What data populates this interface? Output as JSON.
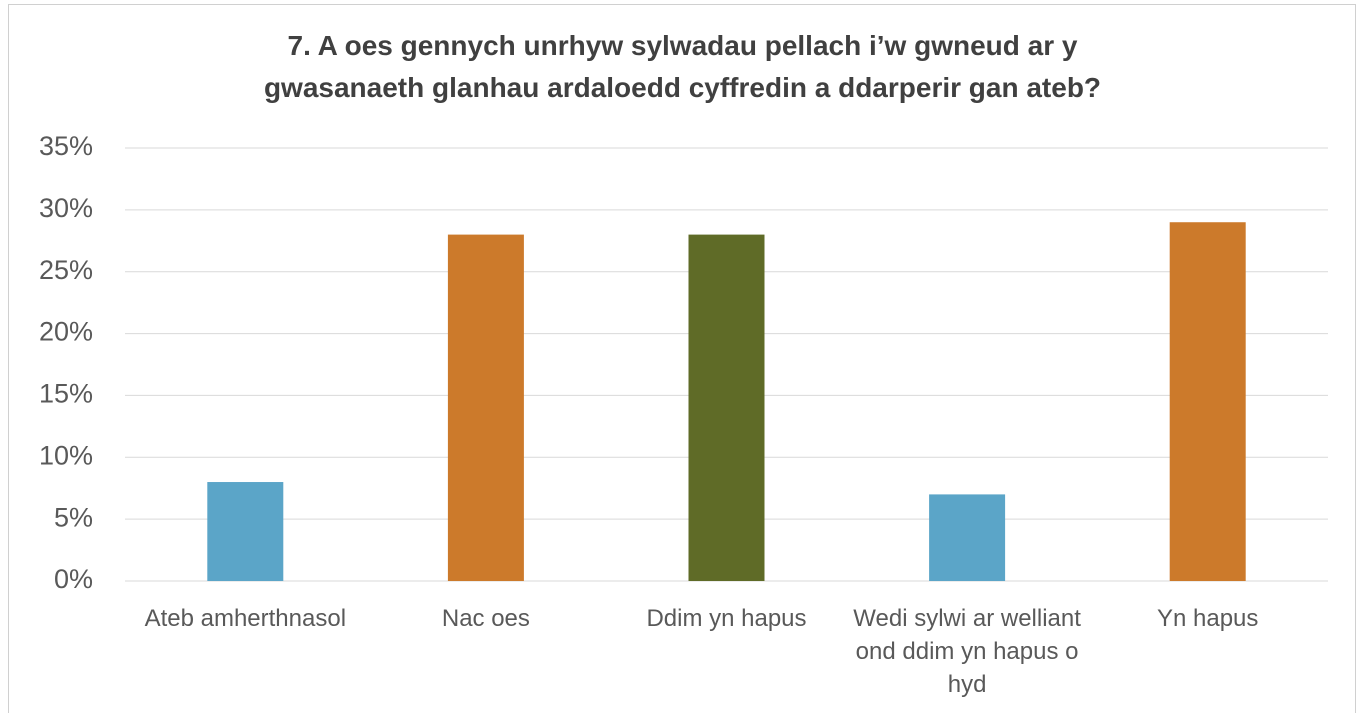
{
  "chart_data": {
    "type": "bar",
    "title": [
      "7.  A oes gennych unrhyw sylwadau pellach i’w gwneud ar y",
      "gwasanaeth glanhau ardaloedd cyffredin a ddarperir gan ateb?"
    ],
    "categories": [
      "Ateb amherthnasol",
      "Nac oes",
      "Ddim yn hapus",
      "Wedi sylwi ar welliant ond ddim yn hapus o hyd",
      "Yn hapus"
    ],
    "values": [
      8,
      28,
      28,
      7,
      29
    ],
    "colors": [
      "#5ba5c8",
      "#cc7a2b",
      "#5f6b27",
      "#5ba5c8",
      "#cc7a2b"
    ],
    "ylim": [
      0,
      35
    ],
    "yticks": [
      {
        "value": 0,
        "label": "0%"
      },
      {
        "value": 5,
        "label": "5%"
      },
      {
        "value": 10,
        "label": "10%"
      },
      {
        "value": 15,
        "label": "15%"
      },
      {
        "value": 20,
        "label": "20%"
      },
      {
        "value": 25,
        "label": "25%"
      },
      {
        "value": 30,
        "label": "30%"
      },
      {
        "value": 35,
        "label": "35%"
      }
    ],
    "grid": true
  }
}
